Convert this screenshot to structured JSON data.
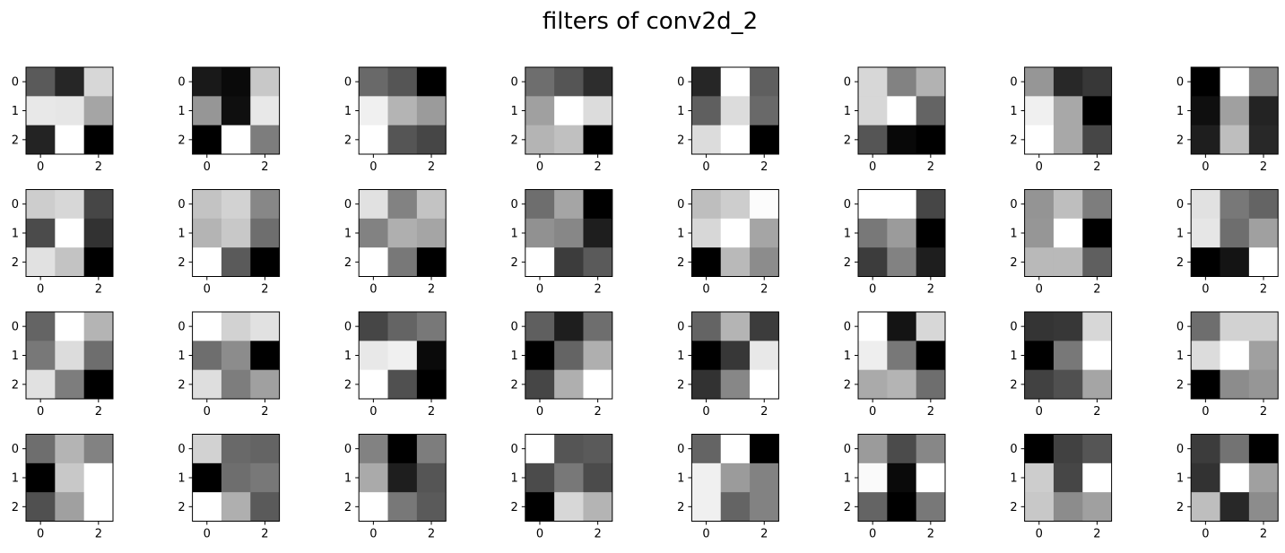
{
  "chart_data": {
    "type": "heatmap",
    "title": "filters of conv2d_2",
    "colormap": "gray",
    "value_range": [
      0,
      255
    ],
    "rows": 4,
    "cols": 8,
    "xticks": [
      "0",
      "2"
    ],
    "yticks": [
      "0",
      "1",
      "2"
    ],
    "filters": [
      [
        [
          90,
          38,
          215
        ],
        [
          232,
          230,
          165
        ],
        [
          35,
          255,
          0
        ]
      ],
      [
        [
          25,
          10,
          200
        ],
        [
          150,
          15,
          232
        ],
        [
          0,
          255,
          125
        ]
      ],
      [
        [
          105,
          85,
          0
        ],
        [
          240,
          180,
          155
        ],
        [
          255,
          85,
          70
        ]
      ],
      [
        [
          110,
          85,
          45
        ],
        [
          160,
          255,
          220
        ],
        [
          180,
          192,
          0
        ]
      ],
      [
        [
          38,
          255,
          95
        ],
        [
          95,
          220,
          105
        ],
        [
          220,
          255,
          0
        ]
      ],
      [
        [
          215,
          130,
          178
        ],
        [
          215,
          255,
          100
        ],
        [
          85,
          8,
          0
        ]
      ],
      [
        [
          150,
          40,
          55
        ],
        [
          240,
          168,
          0
        ],
        [
          255,
          168,
          70
        ]
      ],
      [
        [
          0,
          255,
          135
        ],
        [
          15,
          160,
          35
        ],
        [
          30,
          190,
          40
        ]
      ],
      [
        [
          205,
          215,
          70
        ],
        [
          75,
          255,
          50
        ],
        [
          225,
          195,
          0
        ]
      ],
      [
        [
          195,
          210,
          135
        ],
        [
          180,
          200,
          110
        ],
        [
          255,
          90,
          0
        ]
      ],
      [
        [
          225,
          130,
          195
        ],
        [
          130,
          175,
          165
        ],
        [
          255,
          120,
          0
        ]
      ],
      [
        [
          110,
          165,
          0
        ],
        [
          145,
          135,
          30
        ],
        [
          255,
          60,
          90
        ]
      ],
      [
        [
          190,
          205,
          252
        ],
        [
          215,
          255,
          165
        ],
        [
          0,
          185,
          140
        ]
      ],
      [
        [
          255,
          255,
          70
        ],
        [
          120,
          155,
          0
        ],
        [
          60,
          130,
          30
        ]
      ],
      [
        [
          148,
          190,
          125
        ],
        [
          150,
          255,
          0
        ],
        [
          185,
          185,
          95
        ]
      ],
      [
        [
          225,
          120,
          100
        ],
        [
          230,
          110,
          160
        ],
        [
          0,
          20,
          255
        ]
      ],
      [
        [
          100,
          255,
          180
        ],
        [
          120,
          220,
          110
        ],
        [
          225,
          125,
          0
        ]
      ],
      [
        [
          255,
          210,
          225
        ],
        [
          110,
          140,
          0
        ],
        [
          222,
          125,
          160
        ]
      ],
      [
        [
          70,
          100,
          120
        ],
        [
          232,
          240,
          10
        ],
        [
          255,
          80,
          0
        ]
      ],
      [
        [
          95,
          30,
          110
        ],
        [
          0,
          100,
          175
        ],
        [
          70,
          175,
          255
        ]
      ],
      [
        [
          100,
          180,
          60
        ],
        [
          0,
          55,
          232
        ],
        [
          50,
          135,
          255
        ]
      ],
      [
        [
          255,
          20,
          215
        ],
        [
          238,
          120,
          0
        ],
        [
          170,
          180,
          110
        ]
      ],
      [
        [
          52,
          55,
          215
        ],
        [
          0,
          120,
          255
        ],
        [
          65,
          80,
          165
        ]
      ],
      [
        [
          110,
          210,
          210
        ],
        [
          220,
          255,
          160
        ],
        [
          0,
          140,
          150
        ]
      ],
      [
        [
          110,
          180,
          130
        ],
        [
          0,
          200,
          255
        ],
        [
          80,
          160,
          255
        ]
      ],
      [
        [
          210,
          105,
          100
        ],
        [
          0,
          110,
          120
        ],
        [
          255,
          175,
          90
        ]
      ],
      [
        [
          130,
          0,
          125
        ],
        [
          170,
          30,
          85
        ],
        [
          255,
          120,
          90
        ]
      ],
      [
        [
          255,
          85,
          90
        ],
        [
          75,
          120,
          75
        ],
        [
          0,
          215,
          180
        ]
      ],
      [
        [
          100,
          255,
          0
        ],
        [
          240,
          155,
          130
        ],
        [
          240,
          100,
          130
        ]
      ],
      [
        [
          155,
          75,
          135
        ],
        [
          250,
          10,
          255
        ],
        [
          100,
          0,
          120
        ]
      ],
      [
        [
          0,
          65,
          85
        ],
        [
          205,
          70,
          255
        ],
        [
          200,
          140,
          160
        ]
      ],
      [
        [
          60,
          115,
          0
        ],
        [
          50,
          255,
          160
        ],
        [
          190,
          40,
          140
        ]
      ]
    ]
  }
}
